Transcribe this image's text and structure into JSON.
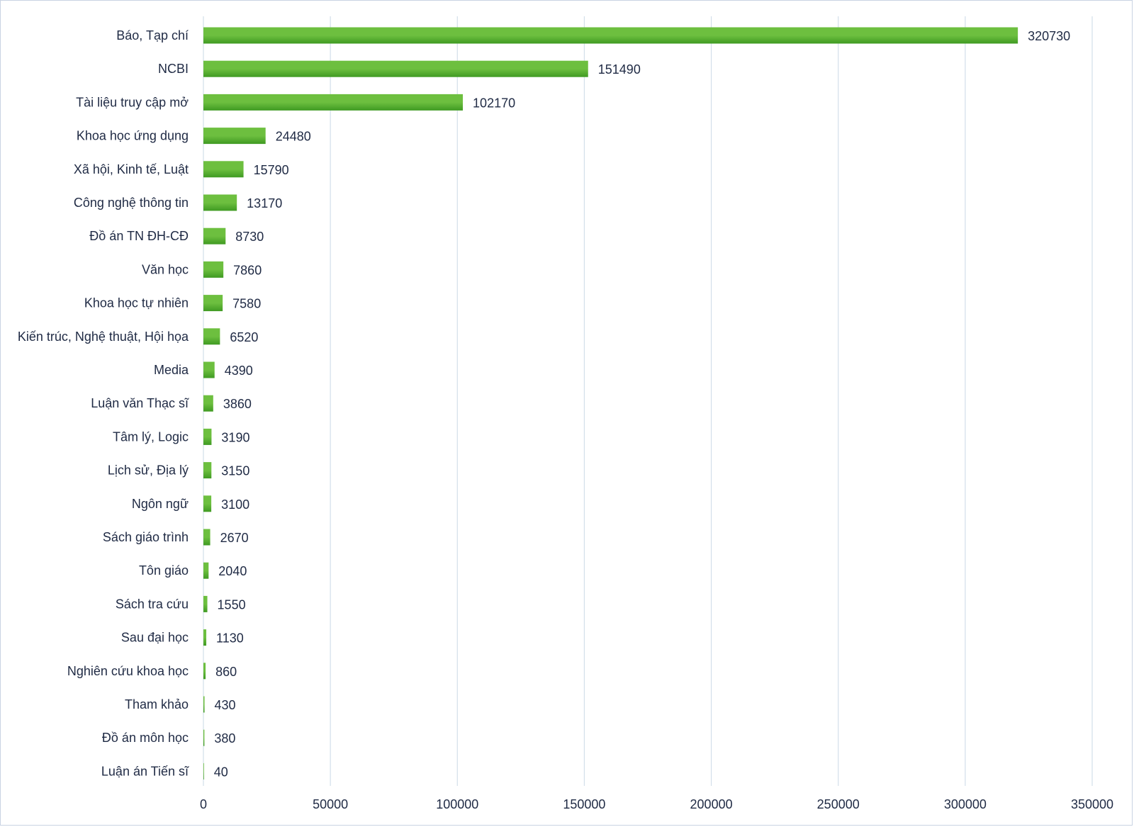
{
  "chart_data": {
    "type": "bar",
    "orientation": "horizontal",
    "categories": [
      "Báo, Tạp chí",
      "NCBI",
      "Tài liệu truy cập mở",
      "Khoa học ứng dụng",
      "Xã hội, Kinh tế, Luật",
      "Công nghệ thông tin",
      "Đồ án TN ĐH-CĐ",
      "Văn học",
      "Khoa học tự nhiên",
      "Kiến trúc, Nghệ thuật, Hội họa",
      "Media",
      "Luận văn Thạc sĩ",
      "Tâm lý, Logic",
      "Lịch sử, Địa lý",
      "Ngôn ngữ",
      "Sách giáo trình",
      "Tôn giáo",
      "Sách tra cứu",
      "Sau đại học",
      "Nghiên cứu khoa học",
      "Tham khảo",
      "Đồ án môn học",
      "Luận án Tiến sĩ"
    ],
    "values": [
      320730,
      151490,
      102170,
      24480,
      15790,
      13170,
      8730,
      7860,
      7580,
      6520,
      4390,
      3860,
      3190,
      3150,
      3100,
      2670,
      2040,
      1550,
      1130,
      860,
      430,
      380,
      40
    ],
    "xlim": [
      0,
      350000
    ],
    "x_ticks": [
      "0",
      "50000",
      "100000",
      "150000",
      "200000",
      "250000",
      "300000",
      "350000"
    ],
    "title": "",
    "xlabel": "",
    "ylabel": "",
    "grid": "vertical",
    "legend": "none",
    "bar_color_light": "#6dbf3f",
    "bar_color_dark": "#3f9a22",
    "data_labels": true
  }
}
